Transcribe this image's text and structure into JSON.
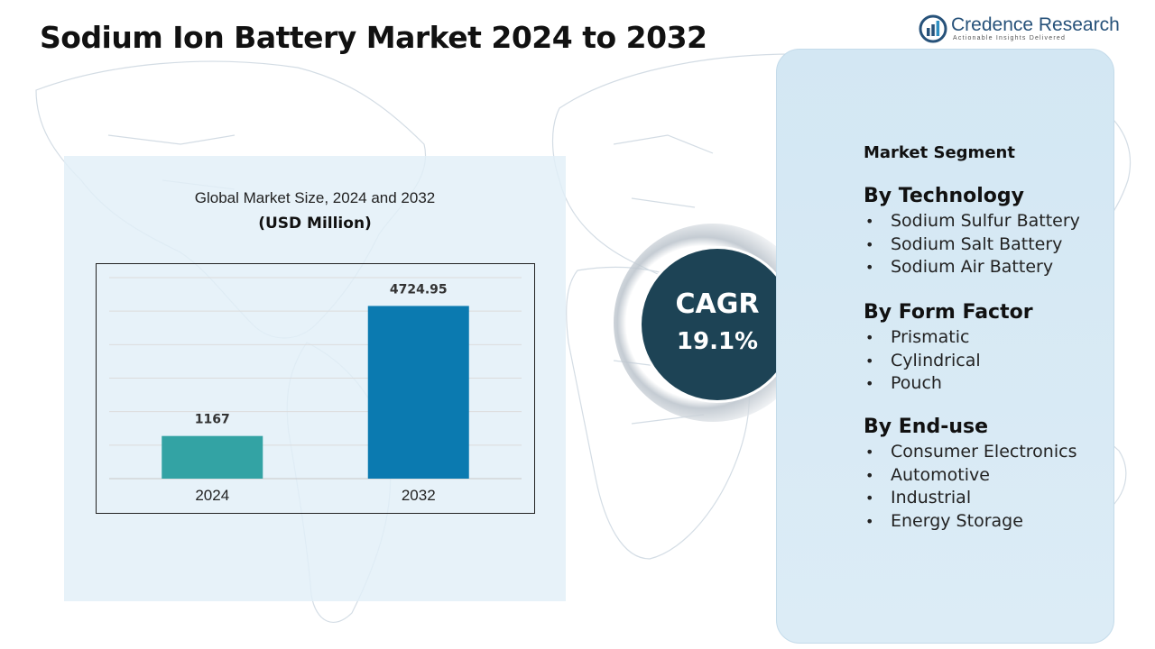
{
  "title": "Sodium Ion Battery Market 2024 to 2032",
  "logo": {
    "name": "Credence Research",
    "tagline": "Actionable Insights Delivered",
    "icon": "bar-chart-logo-icon",
    "color": "#27527a"
  },
  "chart_data": {
    "type": "bar",
    "title": "Global Market Size, 2024 and 2032",
    "subtitle": "(USD Million)",
    "categories": [
      "2024",
      "2032"
    ],
    "values": [
      1167,
      4724.95
    ],
    "value_labels": [
      "1167",
      "4724.95"
    ],
    "colors": [
      "#33a3a4",
      "#0b7ab0"
    ],
    "ylim": [
      0,
      5500
    ],
    "grid": true,
    "legend": "none"
  },
  "cagr": {
    "label": "CAGR",
    "value": "19.1%",
    "color": "#1d4355"
  },
  "segments": {
    "heading": "Market Segment",
    "groups": [
      {
        "title": "By Technology",
        "items": [
          "Sodium Sulfur Battery",
          "Sodium Salt Battery",
          "Sodium Air Battery"
        ]
      },
      {
        "title": "By Form Factor",
        "items": [
          "Prismatic",
          "Cylindrical",
          "Pouch"
        ]
      },
      {
        "title": "By End-use",
        "items": [
          "Consumer Electronics",
          "Automotive",
          "Industrial",
          "Energy Storage"
        ]
      }
    ]
  }
}
